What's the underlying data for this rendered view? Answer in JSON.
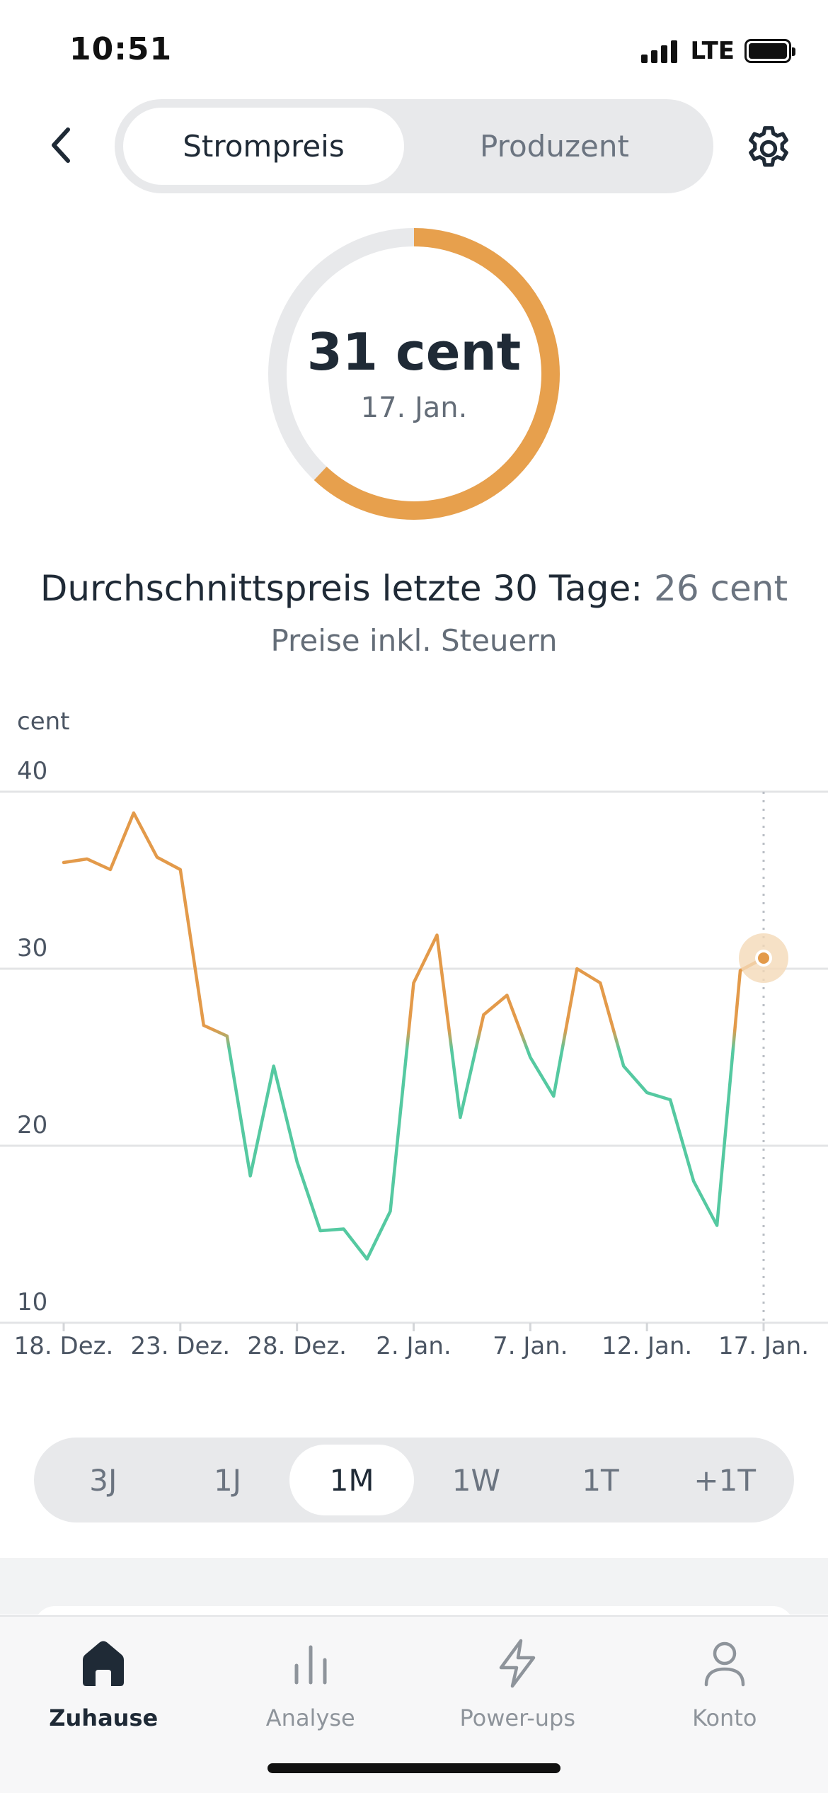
{
  "status_bar": {
    "time": "10:51",
    "network": "LTE"
  },
  "nav": {
    "tabs": [
      {
        "label": "Strompreis",
        "active": true
      },
      {
        "label": "Produzent",
        "active": false
      }
    ],
    "back_icon": "chevron-left-icon",
    "settings_icon": "gear-icon"
  },
  "gauge": {
    "value": "31 cent",
    "date": "17. Jan.",
    "fill_fraction": 0.62,
    "fill_color": "#e7a04d",
    "track_color": "#e8e9eb"
  },
  "summary": {
    "avg_label": "Durchschnittspreis letzte 30 Tage:",
    "avg_value": "26 cent",
    "tax_note": "Preise inkl. Steuern"
  },
  "chart_data": {
    "type": "line",
    "ylabel": "cent",
    "ylim": [
      10,
      40
    ],
    "yticks": [
      "40",
      "30",
      "20",
      "10"
    ],
    "xtick_labels": [
      "18. Dez.",
      "23. Dez.",
      "28. Dez.",
      "2. Jan.",
      "7. Jan.",
      "12. Jan.",
      "17. Jan."
    ],
    "x": [
      "18. Dez.",
      "19. Dez.",
      "20. Dez.",
      "21. Dez.",
      "22. Dez.",
      "23. Dez.",
      "24. Dez.",
      "25. Dez.",
      "26. Dez.",
      "27. Dez.",
      "28. Dez.",
      "29. Dez.",
      "30. Dez.",
      "31. Dez.",
      "1. Jan.",
      "2. Jan.",
      "3. Jan.",
      "4. Jan.",
      "5. Jan.",
      "6. Jan.",
      "7. Jan.",
      "8. Jan.",
      "9. Jan.",
      "10. Jan.",
      "11. Jan.",
      "12. Jan.",
      "13. Jan.",
      "14. Jan.",
      "15. Jan.",
      "16. Jan.",
      "17. Jan."
    ],
    "values": [
      36.0,
      36.2,
      35.6,
      38.8,
      36.3,
      35.6,
      26.8,
      26.2,
      18.3,
      24.5,
      19.1,
      15.2,
      15.3,
      13.6,
      16.3,
      29.2,
      31.9,
      21.6,
      27.4,
      28.5,
      25.0,
      22.8,
      30.0,
      29.2,
      24.5,
      23.0,
      22.6,
      18.0,
      15.5,
      29.9,
      30.6
    ],
    "selected_index": 30,
    "grid": true,
    "color_high": "#e39a4a",
    "color_low": "#55c9a1",
    "threshold": 26
  },
  "range_selector": {
    "items": [
      {
        "label": "3J",
        "active": false
      },
      {
        "label": "1J",
        "active": false
      },
      {
        "label": "1M",
        "active": true
      },
      {
        "label": "1W",
        "active": false
      },
      {
        "label": "1T",
        "active": false
      },
      {
        "label": "+1T",
        "active": false
      }
    ]
  },
  "tabbar": {
    "items": [
      {
        "label": "Zuhause",
        "icon": "home-icon",
        "active": true
      },
      {
        "label": "Analyse",
        "icon": "bar-chart-icon",
        "active": false
      },
      {
        "label": "Power-ups",
        "icon": "lightning-icon",
        "active": false
      },
      {
        "label": "Konto",
        "icon": "user-icon",
        "active": false
      }
    ]
  }
}
